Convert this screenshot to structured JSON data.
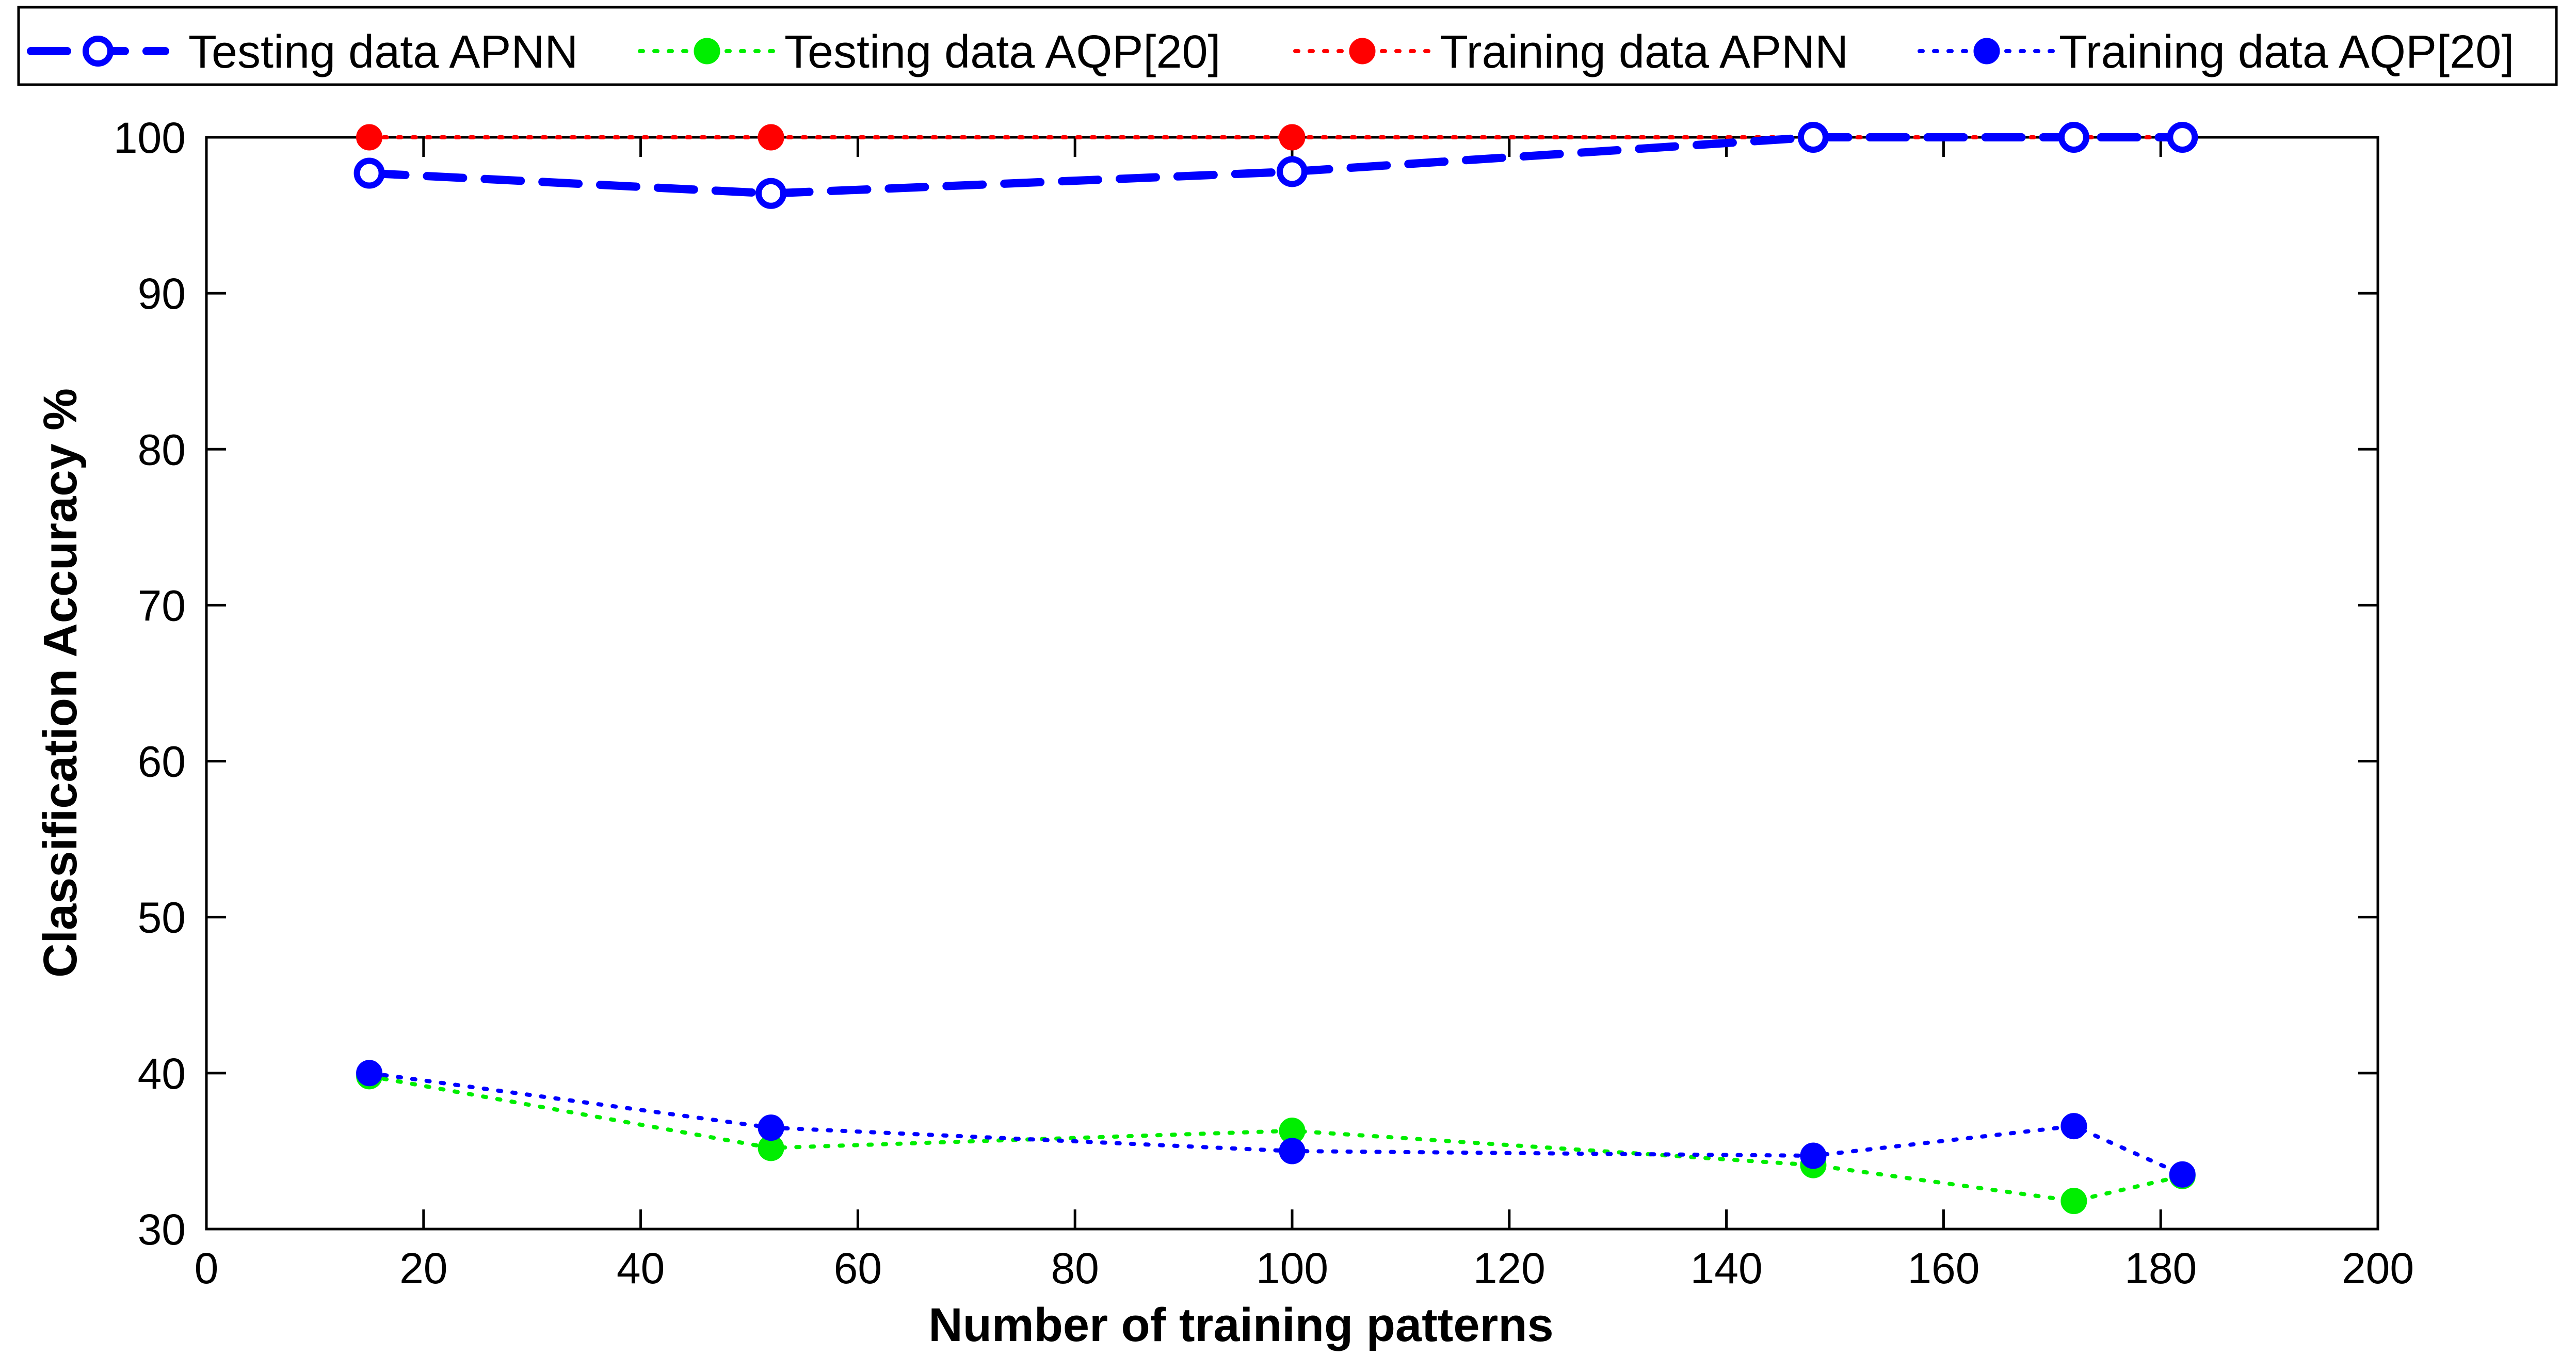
{
  "chart_data": {
    "type": "line",
    "title": "",
    "xlabel": "Number of training patterns",
    "ylabel": "Classification Accuracy %",
    "xlim": [
      0,
      200
    ],
    "ylim": [
      30,
      100
    ],
    "xticks": [
      0,
      20,
      40,
      60,
      80,
      100,
      120,
      140,
      160,
      180,
      200
    ],
    "yticks": [
      30,
      40,
      50,
      60,
      70,
      80,
      90,
      100
    ],
    "xtick_labels": [
      "0",
      "20",
      "40",
      "60",
      "80",
      "100",
      "120",
      "140",
      "160",
      "180",
      "200"
    ],
    "ytick_labels": [
      "30",
      "40",
      "50",
      "60",
      "70",
      "80",
      "90",
      "100"
    ],
    "grid": false,
    "legend_position": "top, outside plot, horizontal",
    "x": [
      15,
      52,
      100,
      148,
      172,
      182
    ],
    "series": [
      {
        "name": "Testing data APNN",
        "values": [
          97.7,
          96.4,
          97.8,
          100,
          100,
          100
        ],
        "color": "#0000ff",
        "line_style": "dashed",
        "marker": "open-circle"
      },
      {
        "name": "Testing data AQP[20]",
        "values": [
          39.8,
          35.2,
          36.3,
          34.1,
          31.8,
          33.4
        ],
        "color": "#00ee00",
        "line_style": "dotted",
        "marker": "filled-circle"
      },
      {
        "name": "Training data APNN",
        "values": [
          100,
          100,
          100,
          100,
          100,
          100
        ],
        "color": "#ff0000",
        "line_style": "dotted",
        "marker": "filled-circle"
      },
      {
        "name": "Training data AQP[20]",
        "values": [
          40.0,
          36.5,
          35.0,
          34.7,
          36.6,
          33.5
        ],
        "color": "#0000ff",
        "line_style": "dotted",
        "marker": "filled-circle"
      }
    ]
  }
}
